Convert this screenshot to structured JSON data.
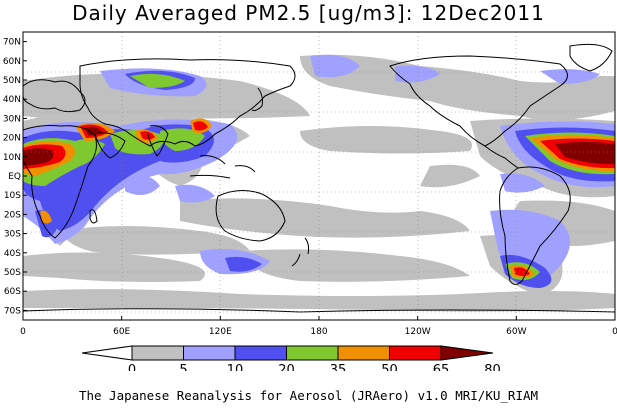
{
  "title": "Daily Averaged PM2.5 [ug/m3]: 12Dec2011",
  "credit": "The Japanese Reanalysis for Aerosol (JRAero) v1.0 MRI/KU_RIAM",
  "lat_labels": [
    "70N",
    "60N",
    "50N",
    "40N",
    "30N",
    "20N",
    "10N",
    "EQ",
    "10S",
    "20S",
    "30S",
    "40S",
    "50S",
    "60S",
    "70S"
  ],
  "lon_labels": [
    "0",
    "60E",
    "120E",
    "180",
    "120W",
    "60W",
    "0"
  ],
  "colorbar": {
    "labels": [
      "0",
      "5",
      "10",
      "20",
      "35",
      "50",
      "65",
      "80"
    ],
    "colors": [
      "#ffffff",
      "#c0c0c0",
      "#a0a0ff",
      "#5050f0",
      "#80c830",
      "#f09000",
      "#f00000",
      "#800000"
    ]
  },
  "colors": {
    "land_outline": "#000000",
    "gridline": "#888888",
    "background": "#ffffff"
  }
}
